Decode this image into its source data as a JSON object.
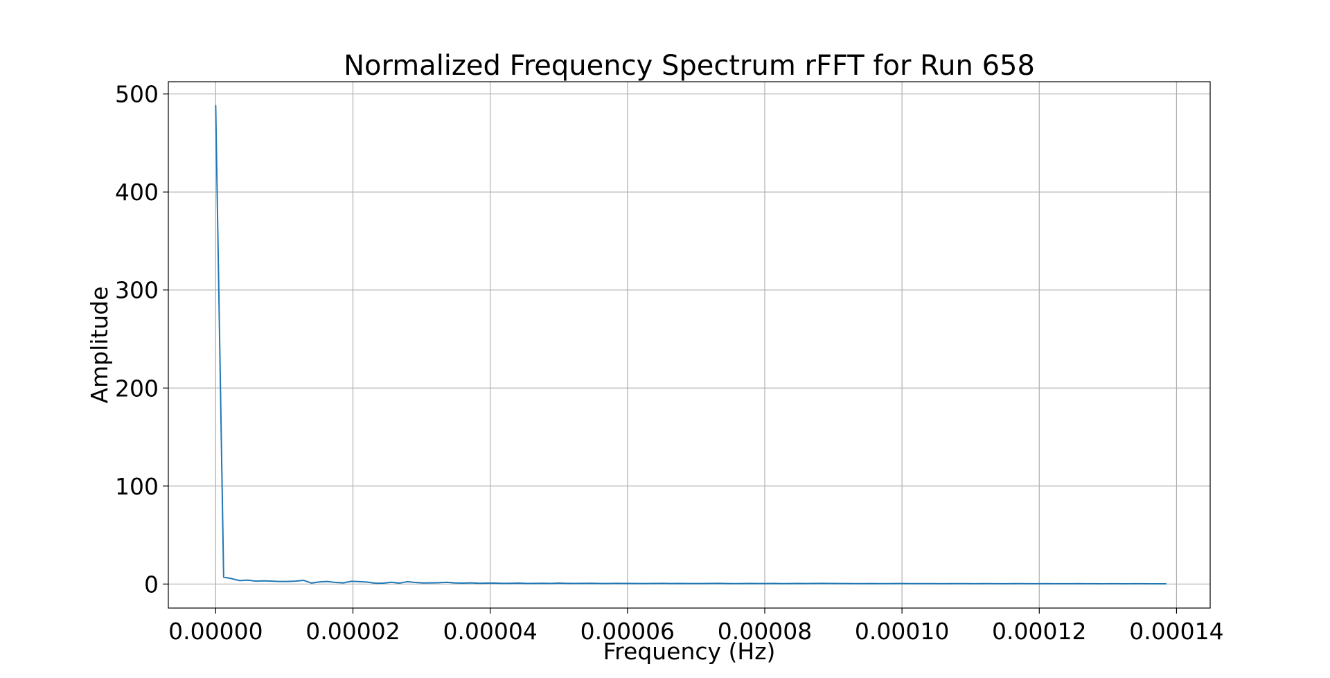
{
  "chart_data": {
    "type": "line",
    "title": "Normalized Frequency Spectrum rFFT for Run 658",
    "xlabel": "Frequency (Hz)",
    "ylabel": "Amplitude",
    "xlim": [
      -6.9e-06,
      0.0001449
    ],
    "ylim": [
      -24.5,
      512.5
    ],
    "xticks": [
      0,
      2e-05,
      4e-05,
      6e-05,
      8e-05,
      0.0001,
      0.00012,
      0.00014
    ],
    "xtick_labels": [
      "0.00000",
      "0.00002",
      "0.00004",
      "0.00006",
      "0.00008",
      "0.00010",
      "0.00012",
      "0.00014"
    ],
    "yticks": [
      0,
      100,
      200,
      300,
      400,
      500
    ],
    "ytick_labels": [
      "0",
      "100",
      "200",
      "300",
      "400",
      "500"
    ],
    "grid": true,
    "line_color": "#1f77b4",
    "series": [
      {
        "x": [
          0,
          1.16e-06,
          2.33e-06,
          3.49e-06,
          4.65e-06,
          5.82e-06,
          6.98e-06,
          8.14e-06,
          9.31e-06,
          1.047e-05,
          1.163e-05,
          1.28e-05,
          1.396e-05,
          1.512e-05,
          1.629e-05,
          1.745e-05,
          1.861e-05,
          1.978e-05,
          2.094e-05,
          2.21e-05,
          2.327e-05,
          2.443e-05,
          2.559e-05,
          2.676e-05,
          2.792e-05,
          2.908e-05,
          3.025e-05,
          3.141e-05,
          3.257e-05,
          3.374e-05,
          3.49e-05,
          3.606e-05,
          3.723e-05,
          3.839e-05,
          3.955e-05,
          4.072e-05,
          4.188e-05,
          4.304e-05,
          4.421e-05,
          4.537e-05,
          4.653e-05,
          4.77e-05,
          4.886e-05,
          5.002e-05,
          5.119e-05,
          5.235e-05,
          5.351e-05,
          5.468e-05,
          5.584e-05,
          5.7e-05,
          5.817e-05,
          5.933e-05,
          6.049e-05,
          6.166e-05,
          6.282e-05,
          6.398e-05,
          6.515e-05,
          6.631e-05,
          6.747e-05,
          6.864e-05,
          6.98e-05,
          7.096e-05,
          7.213e-05,
          7.329e-05,
          7.445e-05,
          7.562e-05,
          7.678e-05,
          7.794e-05,
          7.911e-05,
          8.027e-05,
          8.143e-05,
          8.26e-05,
          8.376e-05,
          8.492e-05,
          8.609e-05,
          8.725e-05,
          8.841e-05,
          8.958e-05,
          9.074e-05,
          9.19e-05,
          9.307e-05,
          9.423e-05,
          9.539e-05,
          9.656e-05,
          9.772e-05,
          9.888e-05,
          0.00010005,
          0.00010121,
          0.00010237,
          0.00010354,
          0.0001047,
          0.00010586,
          0.00010703,
          0.00010819,
          0.00010935,
          0.00011052,
          0.00011168,
          0.00011284,
          0.00011401,
          0.00011517,
          0.00011633,
          0.0001175,
          0.00011866,
          0.00011982,
          0.00012099,
          0.00012215,
          0.00012331,
          0.00012448,
          0.00012564,
          0.0001268,
          0.00012797,
          0.00012913,
          0.00013029,
          0.00013146,
          0.00013262,
          0.00013378,
          0.00013495,
          0.00013611,
          0.00013727,
          0.00013844
        ],
        "values": [
          488,
          7,
          5.5,
          3.5,
          4,
          3,
          3.2,
          3,
          2.6,
          2.6,
          3,
          3.8,
          1,
          2.2,
          2.6,
          1.6,
          1.2,
          2.8,
          2.4,
          2,
          0.8,
          0.9,
          1.8,
          0.9,
          2.4,
          1.6,
          1.1,
          1.2,
          1.4,
          1.7,
          1.1,
          0.9,
          1.2,
          0.8,
          0.9,
          0.9,
          0.7,
          0.8,
          0.9,
          0.6,
          0.7,
          0.8,
          0.6,
          0.9,
          0.7,
          0.6,
          0.7,
          0.8,
          0.6,
          0.5,
          0.7,
          0.6,
          0.6,
          0.5,
          0.5,
          0.6,
          0.7,
          0.5,
          0.6,
          0.5,
          0.5,
          0.5,
          0.6,
          0.7,
          0.5,
          0.4,
          0.5,
          0.6,
          0.5,
          0.5,
          0.6,
          0.4,
          0.5,
          0.6,
          0.5,
          0.6,
          0.7,
          0.6,
          0.5,
          0.5,
          0.4,
          0.4,
          0.5,
          0.4,
          0.4,
          0.5,
          0.5,
          0.4,
          0.4,
          0.4,
          0.4,
          0.3,
          0.4,
          0.4,
          0.4,
          0.3,
          0.4,
          0.4,
          0.3,
          0.3,
          0.4,
          0.4,
          0.3,
          0.3,
          0.4,
          0.3,
          0.3,
          0.3,
          0.4,
          0.3,
          0.3,
          0.2,
          0.3,
          0.3,
          0.2,
          0.3,
          0.3,
          0.2,
          0.2,
          0.2
        ]
      }
    ]
  }
}
